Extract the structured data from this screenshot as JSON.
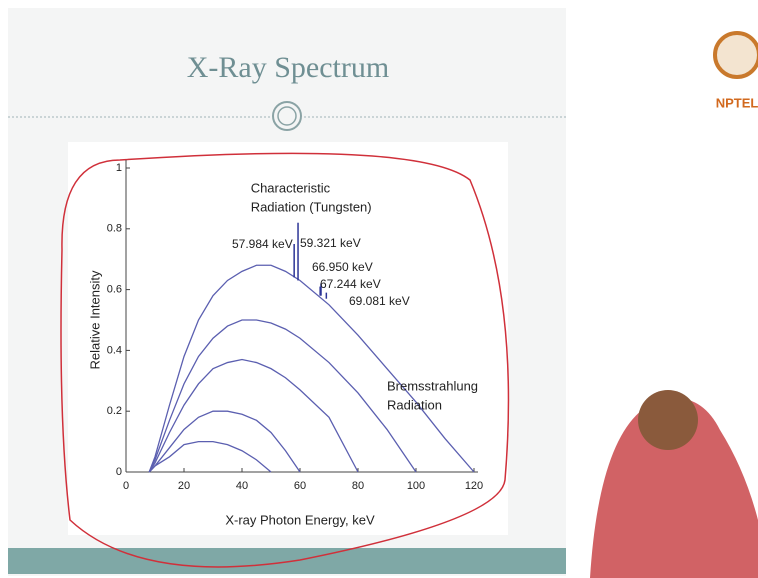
{
  "slide": {
    "title": "X-Ray Spectrum",
    "logo": "NPTEL"
  },
  "chart_data": {
    "type": "line",
    "x_label": "X-ray Photon Energy, keV",
    "y_label": "Relative Intensity",
    "x": [
      8,
      10,
      15,
      20,
      25,
      30,
      35,
      40,
      45,
      50,
      55,
      60,
      70,
      80,
      90,
      100,
      110,
      120
    ],
    "series": [
      {
        "color": "#5b5fb0",
        "values": [
          0,
          0.05,
          0.22,
          0.38,
          0.5,
          0.58,
          0.63,
          0.66,
          0.68,
          0.68,
          0.66,
          0.63,
          0.55,
          0.45,
          0.34,
          0.23,
          0.11,
          0
        ]
      },
      {
        "color": "#5b5fb0",
        "values": [
          0,
          0.04,
          0.17,
          0.29,
          0.38,
          0.44,
          0.48,
          0.5,
          0.5,
          0.49,
          0.47,
          0.44,
          0.36,
          0.26,
          0.14,
          0,
          null,
          null
        ]
      },
      {
        "color": "#5b5fb0",
        "values": [
          0,
          0.03,
          0.13,
          0.22,
          0.29,
          0.34,
          0.36,
          0.37,
          0.36,
          0.34,
          0.31,
          0.27,
          0.18,
          0,
          null,
          null,
          null,
          null
        ]
      },
      {
        "color": "#5b5fb0",
        "values": [
          0,
          0.02,
          0.08,
          0.14,
          0.18,
          0.2,
          0.2,
          0.19,
          0.17,
          0.13,
          0.07,
          0,
          null,
          null,
          null,
          null,
          null,
          null
        ]
      },
      {
        "color": "#5b5fb0",
        "values": [
          0,
          0.02,
          0.05,
          0.09,
          0.1,
          0.1,
          0.09,
          0.07,
          0.04,
          0,
          null,
          null,
          null,
          null,
          null,
          null,
          null,
          null
        ]
      }
    ],
    "peaks": [
      {
        "value": 57.984,
        "label": "57.984 keV",
        "base": 0.64,
        "top": 0.75
      },
      {
        "value": 59.321,
        "label": "59.321 keV",
        "base": 0.63,
        "top": 0.82
      },
      {
        "value": 66.95,
        "label": "66.950 keV",
        "base": 0.58,
        "top": 0.61
      },
      {
        "value": 67.244,
        "label": "67.244 keV",
        "base": 0.58,
        "top": 0.62
      },
      {
        "value": 69.081,
        "label": "69.081 keV",
        "base": 0.57,
        "top": 0.59
      }
    ],
    "peak_color": "#2c3596",
    "annotations": [
      {
        "lines": [
          "Characteristic",
          "Radiation (Tungsten)"
        ],
        "x": 43,
        "y": 0.93
      },
      {
        "lines": [
          "Bremsstrahlung",
          "Radiation"
        ],
        "x": 90,
        "y": 0.28
      }
    ],
    "xlim": [
      0,
      120
    ],
    "xticks": [
      0,
      20,
      40,
      60,
      80,
      100,
      120
    ],
    "ylim": [
      0,
      1
    ],
    "yticks": [
      0,
      0.2,
      0.4,
      0.6,
      0.8,
      1
    ]
  }
}
